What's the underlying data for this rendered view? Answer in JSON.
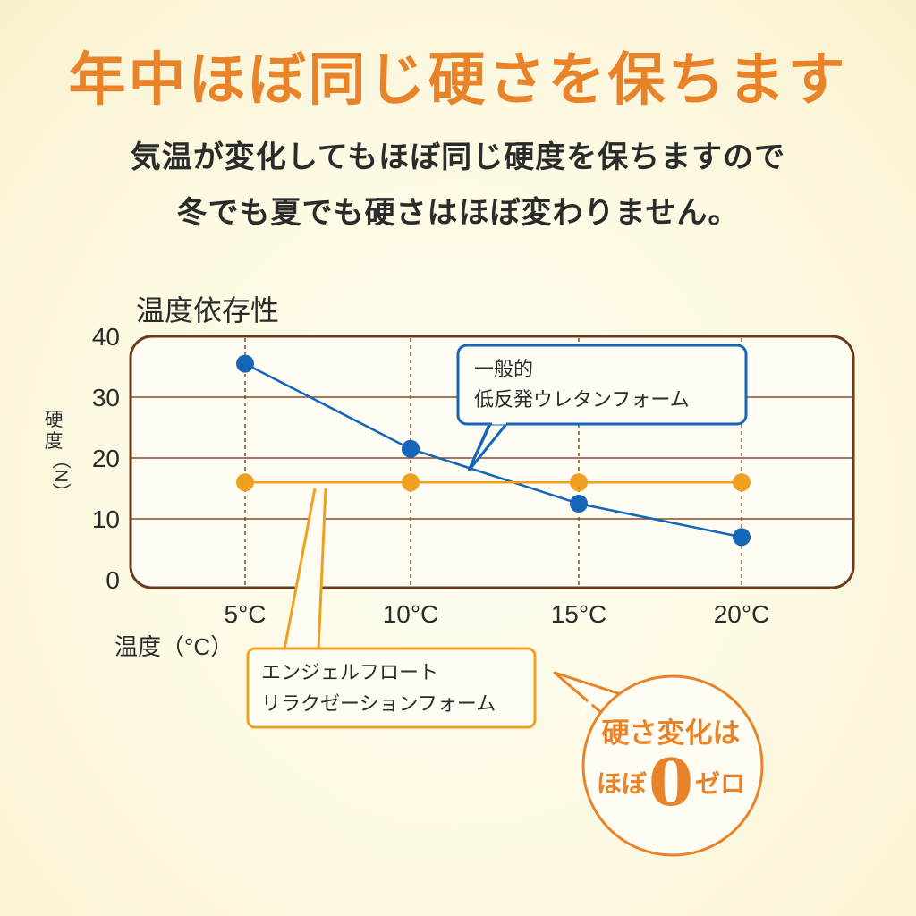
{
  "header": {
    "title": "年中ほぼ同じ硬さを保ちます",
    "subtitle_line1": "気温が変化してもほぼ同じ硬度を保ちますので",
    "subtitle_line2": "冬でも夏でも硬さはほぼ変わりません。"
  },
  "chart_data": {
    "type": "line",
    "title": "温度依存性",
    "xlabel": "温度（°C）",
    "ylabel": "硬度（N）",
    "categories": [
      "5°C",
      "10°C",
      "15°C",
      "20°C"
    ],
    "ylim": [
      0,
      40
    ],
    "yticks": [
      0,
      10,
      20,
      30,
      40
    ],
    "grid": true,
    "series": [
      {
        "name_line1": "一般的",
        "name_line2": "低反発ウレタンフォーム",
        "values": [
          35.5,
          21.5,
          12.5,
          7
        ],
        "color": "#1565b8"
      },
      {
        "name_line1": "エンジェルフロート",
        "name_line2": "リラクゼーションフォーム",
        "values": [
          16,
          16,
          16,
          16
        ],
        "color": "#f0a020"
      }
    ]
  },
  "badge": {
    "line1": "硬さ変化は",
    "prefix": "ほぼ",
    "zero": "0",
    "suffix": "ゼロ",
    "color": "#e8832a"
  }
}
